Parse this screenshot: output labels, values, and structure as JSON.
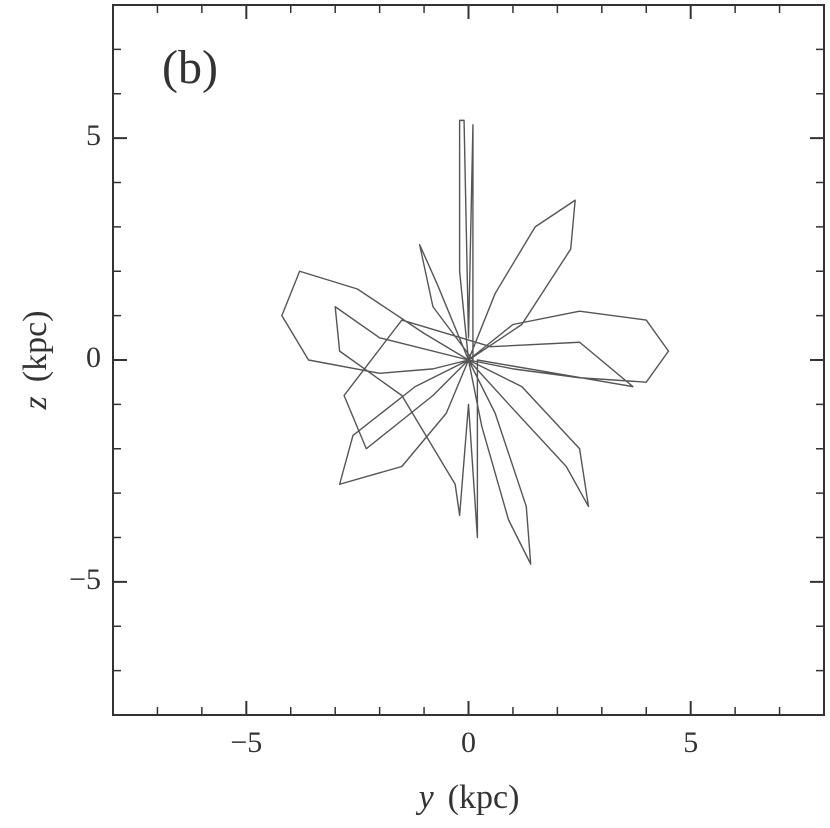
{
  "chart_data": {
    "type": "line",
    "annotation": "(b)",
    "xlabel": {
      "symbol": "y",
      "unit": "(kpc)"
    },
    "ylabel": {
      "symbol": "z",
      "unit": "(kpc)"
    },
    "xlim": [
      -8,
      8
    ],
    "ylim": [
      -8,
      8
    ],
    "xticks": [
      {
        "value": -5,
        "label": "−5"
      },
      0,
      5
    ],
    "yticks": [
      {
        "value": -5,
        "label": "−5"
      },
      0,
      5
    ],
    "xminorticks": [
      -7,
      -6,
      -4,
      -3,
      -2,
      -1,
      1,
      2,
      3,
      4,
      6,
      7
    ],
    "yminorticks": [
      -7,
      -6,
      -4,
      -3,
      -2,
      -1,
      1,
      2,
      3,
      4,
      6,
      7
    ],
    "series": [
      {
        "color": "#555555",
        "x": [
          0,
          1,
          2.5,
          4,
          4.5,
          4,
          2.5,
          1,
          0,
          -1,
          -2.5,
          -3.8,
          -4.2,
          -3.6,
          -2,
          -0.8,
          0,
          0.6,
          1.5,
          2.4,
          2.3,
          1.2,
          0,
          -0.5,
          -1.5,
          -2.9,
          -2.6,
          -1.2,
          0,
          0.3,
          0.9,
          1.4,
          1.3,
          0.6,
          0,
          -0.2,
          -0.2,
          -0.1,
          0,
          0.1,
          0.1,
          -0.8,
          -1.1,
          -0.7,
          0,
          1,
          2.2,
          2.7,
          2.5,
          1.2,
          0,
          -2,
          -3,
          -2.9,
          -1.5,
          -0.3,
          -0.2,
          0,
          0.2,
          0.2,
          3.7,
          2.5,
          0.5,
          -1.5,
          -2.8,
          -2.3,
          -0.8,
          0
        ],
        "y": [
          0,
          0.8,
          1.1,
          0.9,
          0.2,
          -0.5,
          -0.4,
          -0.2,
          0,
          0.6,
          1.6,
          2.0,
          1.0,
          0,
          -0.3,
          -0.2,
          0,
          1.5,
          3.0,
          3.6,
          2.5,
          0.8,
          0,
          -1.2,
          -2.4,
          -2.8,
          -1.7,
          -0.6,
          0,
          -1.5,
          -3.6,
          -4.6,
          -3.3,
          -1.2,
          0,
          2.0,
          5.4,
          5.4,
          0.5,
          5.3,
          0,
          1.2,
          2.6,
          1.7,
          0,
          -1.1,
          -2.4,
          -3.3,
          -2.0,
          -0.6,
          0,
          0.5,
          1.2,
          0.2,
          -0.8,
          -2.8,
          -3.5,
          -1,
          -4,
          0,
          -0.6,
          0.4,
          0.3,
          0.9,
          -0.8,
          -2.0,
          -0.8,
          0
        ]
      }
    ]
  }
}
